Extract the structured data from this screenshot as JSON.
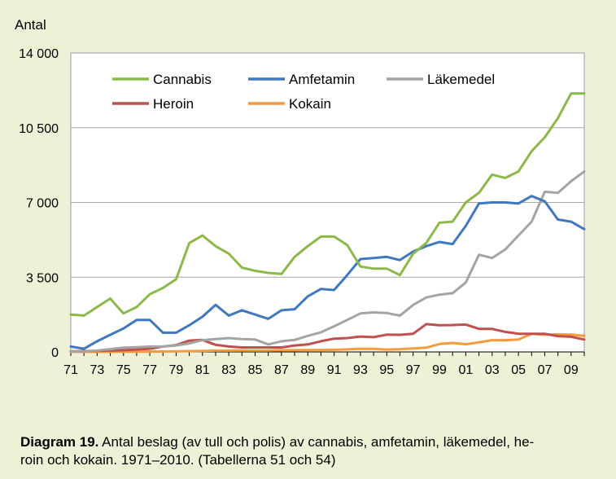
{
  "chart_data": {
    "type": "line",
    "ylabel": "Antal",
    "yticks": [
      "14 000",
      "10 500",
      "7 000",
      "3 500",
      "0"
    ],
    "ylim": [
      0,
      14000
    ],
    "xlim": [
      1971,
      2010
    ],
    "xtick_labels": [
      "71",
      "73",
      "75",
      "77",
      "79",
      "81",
      "83",
      "85",
      "87",
      "89",
      "91",
      "93",
      "95",
      "97",
      "99",
      "01",
      "03",
      "05",
      "07",
      "09"
    ],
    "grid": true,
    "legend_placement": "top-left inside",
    "x": [
      1971,
      1972,
      1973,
      1974,
      1975,
      1976,
      1977,
      1978,
      1979,
      1980,
      1981,
      1982,
      1983,
      1984,
      1985,
      1986,
      1987,
      1988,
      1989,
      1990,
      1991,
      1992,
      1993,
      1994,
      1995,
      1996,
      1997,
      1998,
      1999,
      2000,
      2001,
      2002,
      2003,
      2004,
      2005,
      2006,
      2007,
      2008,
      2009,
      2010
    ],
    "series": [
      {
        "name": "Cannabis",
        "color": "#8cb94a",
        "values": [
          1750,
          1700,
          2100,
          2500,
          1800,
          2100,
          2700,
          3000,
          3400,
          5100,
          5450,
          4950,
          4600,
          3950,
          3800,
          3700,
          3650,
          4450,
          4950,
          5400,
          5400,
          5000,
          4000,
          3900,
          3900,
          3600,
          4600,
          5100,
          6050,
          6100,
          7000,
          7450,
          8300,
          8150,
          8450,
          9400,
          10050,
          10950,
          12100,
          12100
        ]
      },
      {
        "name": "Amfetamin",
        "color": "#3f78c0",
        "values": [
          250,
          150,
          500,
          800,
          1100,
          1500,
          1500,
          900,
          900,
          1250,
          1650,
          2200,
          1700,
          1950,
          1750,
          1550,
          1950,
          2000,
          2600,
          2950,
          2900,
          3600,
          4350,
          4400,
          4450,
          4300,
          4700,
          4950,
          5150,
          5050,
          5900,
          6950,
          7000,
          7000,
          6950,
          7300,
          7050,
          6200,
          6100,
          5750
        ]
      },
      {
        "name": "Läkemedel",
        "color": "#a4a4a4",
        "values": [
          20,
          20,
          60,
          130,
          200,
          220,
          250,
          250,
          300,
          400,
          550,
          600,
          650,
          600,
          580,
          350,
          500,
          560,
          750,
          920,
          1200,
          1500,
          1800,
          1850,
          1820,
          1700,
          2200,
          2550,
          2680,
          2750,
          3250,
          4550,
          4400,
          4800,
          5450,
          6100,
          7500,
          7450,
          7990,
          8450
        ]
      },
      {
        "name": "Heroin",
        "color": "#c0504d",
        "values": [
          30,
          40,
          50,
          60,
          80,
          110,
          150,
          250,
          320,
          530,
          560,
          330,
          250,
          210,
          210,
          210,
          210,
          300,
          350,
          500,
          620,
          650,
          720,
          690,
          810,
          800,
          850,
          1300,
          1250,
          1260,
          1280,
          1080,
          1080,
          940,
          850,
          850,
          850,
          740,
          710,
          580
        ]
      },
      {
        "name": "Kokain",
        "color": "#f79a3c",
        "values": [
          5,
          5,
          5,
          5,
          10,
          10,
          20,
          20,
          30,
          40,
          50,
          60,
          60,
          70,
          70,
          70,
          80,
          80,
          90,
          90,
          100,
          120,
          150,
          140,
          110,
          130,
          160,
          200,
          370,
          420,
          360,
          450,
          550,
          550,
          580,
          850,
          800,
          820,
          810,
          750
        ]
      }
    ]
  },
  "caption": {
    "lead": "Diagram 19.",
    "text": " Antal beslag (av tull och polis) av cannabis, amfetamin, läkemedel, he-",
    "line2": "roin och kokain. 1971–2010. (Tabellerna 51 och 54)"
  }
}
